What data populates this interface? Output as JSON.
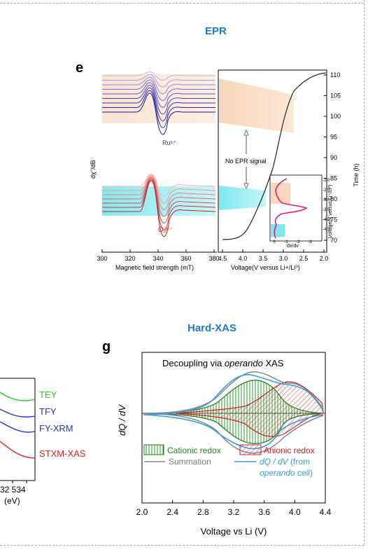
{
  "epr": {
    "title": "EPR",
    "letter": "e",
    "ylabel": "dχ''/dB",
    "xlabel_left": "Magnetic field strength (mT)",
    "xlabel_right": "Voltage(V versus Li+/Li⁰)",
    "right_axis_label": "Time (h)",
    "ru_label": "Ru⁵⁺",
    "o2_label": "O₂ⁿ⁻",
    "no_signal": "No EPR signal",
    "inset_ylabel": "Voltage(V versus Li⁺/Li⁰)",
    "inset_xlabel": "dx/dv",
    "left_ticks": [
      "300",
      "320",
      "340",
      "360",
      "380"
    ],
    "voltage_ticks": [
      "4.5",
      "4.0",
      "3.5",
      "3.0",
      "2.5",
      "2.0"
    ],
    "time_ticks": [
      "110",
      "105",
      "100",
      "95",
      "90",
      "85",
      "80",
      "75",
      "70"
    ],
    "inset_yticks": [
      "-2.0",
      "-2.5",
      "-3.0",
      "-3.5",
      "-4.0",
      "-4.5"
    ],
    "inset_xticks": [
      "0",
      "-1",
      "-2",
      "-3"
    ]
  },
  "xas_partial": {
    "labels": [
      "TEY",
      "TFY",
      "FY-XRM",
      "STXM-XAS"
    ],
    "colors": [
      "#22cc22",
      "#2233cc",
      "#2233cc",
      "#dd2222"
    ],
    "tick_text": "32 534",
    "unit": "(eV)"
  },
  "hardxas": {
    "title": "Hard-XAS",
    "letter": "g",
    "box_title_a": "Decoupling via ",
    "box_title_b": "operando",
    "box_title_c": " XAS",
    "ylabel": "dQ / dV",
    "xlabel": "Voltage vs Li (V)",
    "xticks": [
      "2.0",
      "2.4",
      "2.8",
      "3.2",
      "3.6",
      "4.0",
      "4.4"
    ],
    "legend": {
      "cationic": "Cationic redox",
      "anionic": "Anionic redox",
      "summation": "Summation",
      "dqdv_a": "dQ / dV",
      "dqdv_b": " (from",
      "dqdv_c": "operando",
      "dqdv_d": " cell)"
    }
  }
}
